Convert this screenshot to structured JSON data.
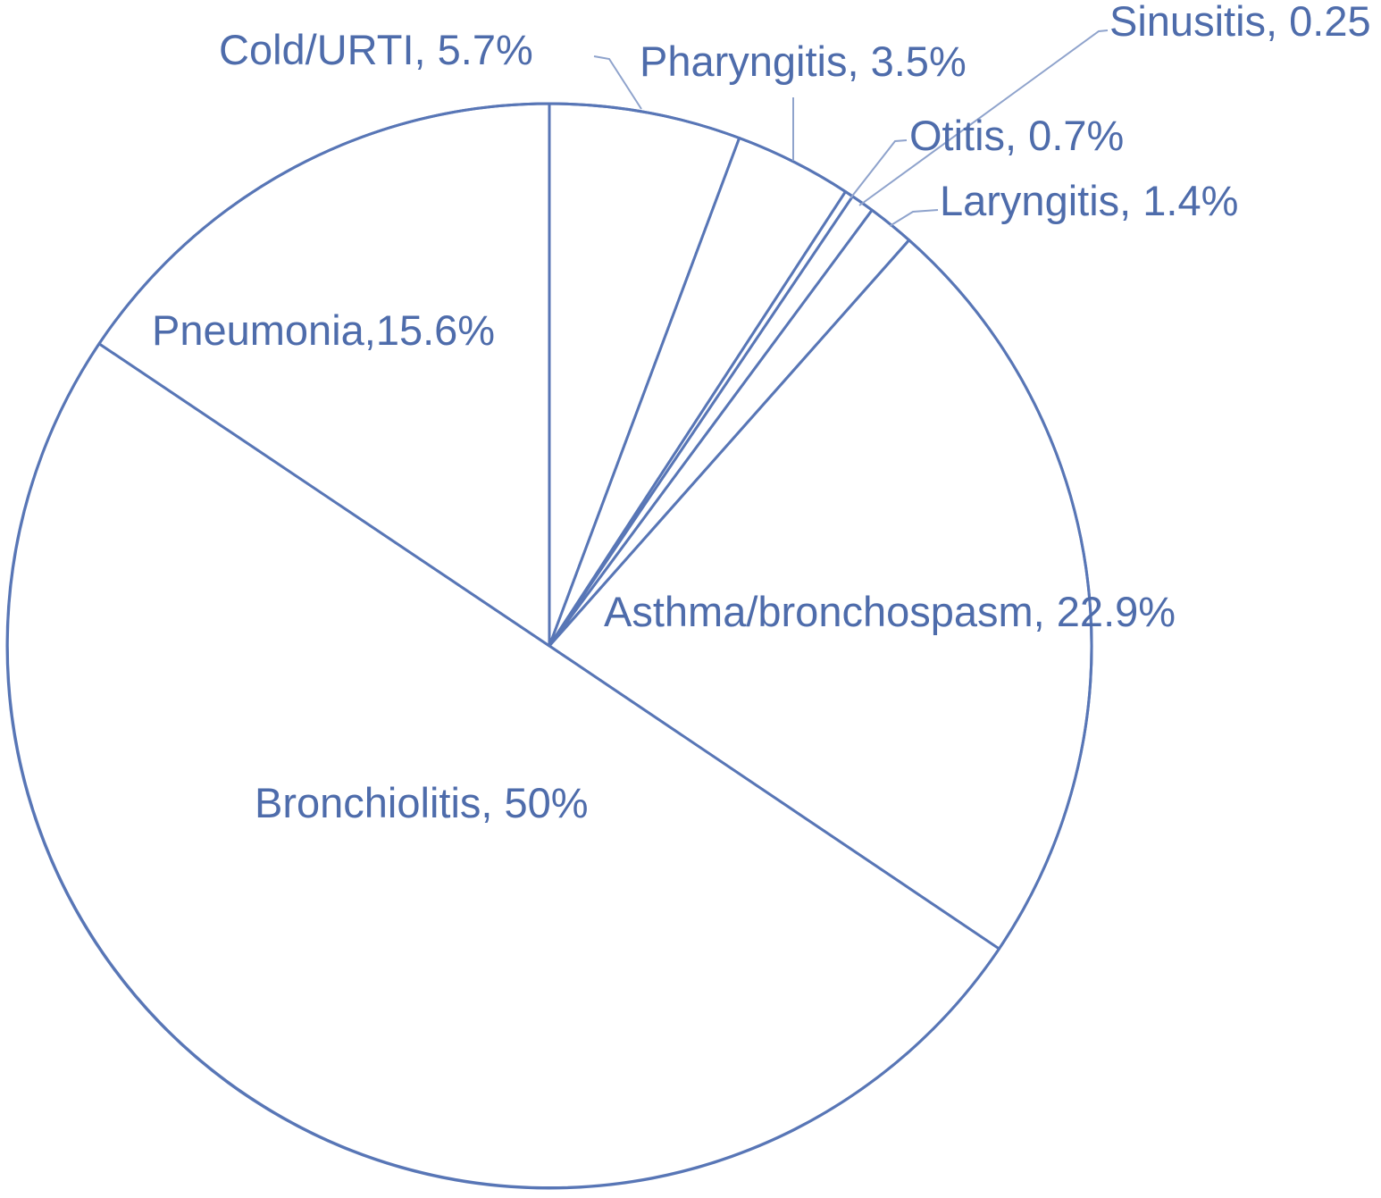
{
  "chart_data": {
    "type": "pie",
    "title": "",
    "start": "top",
    "direction": "clockwise",
    "colors": {
      "outline": "#5876b6",
      "label": "#4e6cab",
      "leader": "#8fa3cc",
      "fill": "#ffffff"
    },
    "slices": [
      {
        "name": "Cold/URTI",
        "value": 5.7,
        "label": "Cold/URTI, 5.7%"
      },
      {
        "name": "Pharyngitis",
        "value": 3.5,
        "label": "Pharyngitis, 3.5%"
      },
      {
        "name": "Sinusitis",
        "value": 0.25,
        "label": "Sinusitis, 0.25"
      },
      {
        "name": "Otitis",
        "value": 0.7,
        "label": "Otitis, 0.7%"
      },
      {
        "name": "Laryngitis",
        "value": 1.4,
        "label": "Laryngitis, 1.4%"
      },
      {
        "name": "Asthma/bronchospasm",
        "value": 22.9,
        "label": "Asthma/bronchospasm, 22.9%"
      },
      {
        "name": "Bronchiolitis",
        "value": 50,
        "label": "Bronchiolitis, 50%"
      },
      {
        "name": "Pneumonia",
        "value": 15.6,
        "label": "Pneumonia,15.6%"
      }
    ]
  }
}
